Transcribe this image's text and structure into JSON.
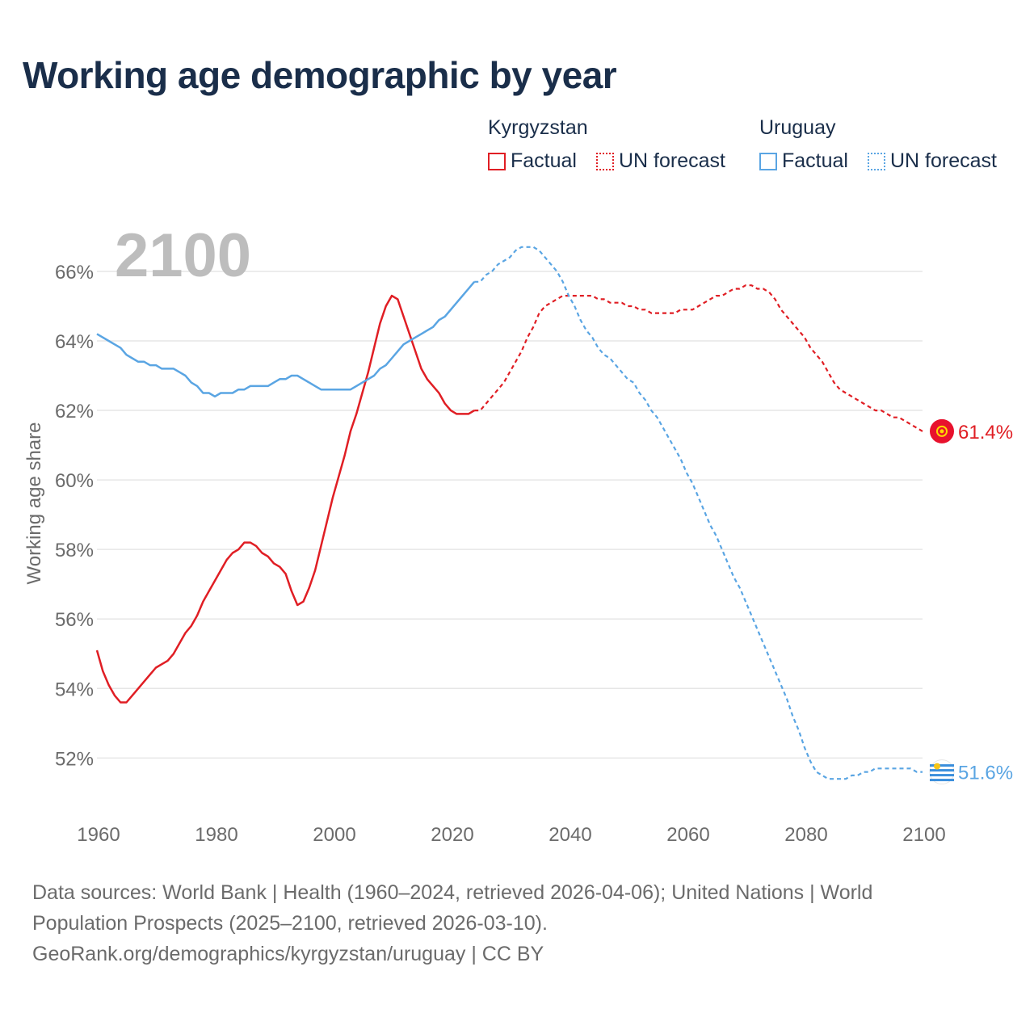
{
  "title": "Working age demographic by year",
  "year_label": "2100",
  "legend": {
    "groups": [
      {
        "country": "Kyrgyzstan",
        "color": "#e01e24",
        "factual": "Factual",
        "forecast": "UN forecast"
      },
      {
        "country": "Uruguay",
        "color": "#5aa5e3",
        "factual": "Factual",
        "forecast": "UN forecast"
      }
    ]
  },
  "footer": {
    "line1": "Data sources: World Bank | Health (1960–2024, retrieved 2026-04-06); United Nations | World",
    "line2": "Population Prospects (2025–2100, retrieved 2026-03-10).",
    "line3": "GeoRank.org/demographics/kyrgyzstan/uruguay | CC BY"
  },
  "chart_data": {
    "type": "line",
    "title": "Working age demographic by year",
    "xlabel": "",
    "ylabel": "Working age share",
    "xlim": [
      1960,
      2100
    ],
    "ylim": [
      50.8,
      67.3
    ],
    "x_ticks": [
      1960,
      1980,
      2000,
      2020,
      2040,
      2060,
      2080,
      2100
    ],
    "x_tick_labels": [
      "1960",
      "1980",
      "2000",
      "2020",
      "2040",
      "2060",
      "2080",
      "2100"
    ],
    "y_ticks": [
      52,
      54,
      56,
      58,
      60,
      62,
      64,
      66
    ],
    "y_tick_labels": [
      "52%",
      "54%",
      "56%",
      "58%",
      "60%",
      "62%",
      "64%",
      "66%"
    ],
    "grid": true,
    "series": [
      {
        "name": "Kyrgyzstan",
        "color": "#e01e24",
        "end_label": "61.4%",
        "factual_range": [
          1960,
          2024
        ],
        "points": [
          [
            1960,
            55.1
          ],
          [
            1961,
            54.5
          ],
          [
            1962,
            54.1
          ],
          [
            1963,
            53.8
          ],
          [
            1964,
            53.6
          ],
          [
            1965,
            53.6
          ],
          [
            1966,
            53.8
          ],
          [
            1967,
            54.0
          ],
          [
            1968,
            54.2
          ],
          [
            1969,
            54.4
          ],
          [
            1970,
            54.6
          ],
          [
            1971,
            54.7
          ],
          [
            1972,
            54.8
          ],
          [
            1973,
            55.0
          ],
          [
            1974,
            55.3
          ],
          [
            1975,
            55.6
          ],
          [
            1976,
            55.8
          ],
          [
            1977,
            56.1
          ],
          [
            1978,
            56.5
          ],
          [
            1979,
            56.8
          ],
          [
            1980,
            57.1
          ],
          [
            1981,
            57.4
          ],
          [
            1982,
            57.7
          ],
          [
            1983,
            57.9
          ],
          [
            1984,
            58.0
          ],
          [
            1985,
            58.2
          ],
          [
            1986,
            58.2
          ],
          [
            1987,
            58.1
          ],
          [
            1988,
            57.9
          ],
          [
            1989,
            57.8
          ],
          [
            1990,
            57.6
          ],
          [
            1991,
            57.5
          ],
          [
            1992,
            57.3
          ],
          [
            1993,
            56.8
          ],
          [
            1994,
            56.4
          ],
          [
            1995,
            56.5
          ],
          [
            1996,
            56.9
          ],
          [
            1997,
            57.4
          ],
          [
            1998,
            58.1
          ],
          [
            1999,
            58.8
          ],
          [
            2000,
            59.5
          ],
          [
            2001,
            60.1
          ],
          [
            2002,
            60.7
          ],
          [
            2003,
            61.4
          ],
          [
            2004,
            61.9
          ],
          [
            2005,
            62.5
          ],
          [
            2006,
            63.1
          ],
          [
            2007,
            63.8
          ],
          [
            2008,
            64.5
          ],
          [
            2009,
            65.0
          ],
          [
            2010,
            65.3
          ],
          [
            2011,
            65.2
          ],
          [
            2012,
            64.7
          ],
          [
            2013,
            64.2
          ],
          [
            2014,
            63.7
          ],
          [
            2015,
            63.2
          ],
          [
            2016,
            62.9
          ],
          [
            2017,
            62.7
          ],
          [
            2018,
            62.5
          ],
          [
            2019,
            62.2
          ],
          [
            2020,
            62.0
          ],
          [
            2021,
            61.9
          ],
          [
            2022,
            61.9
          ],
          [
            2023,
            61.9
          ],
          [
            2024,
            62.0
          ],
          [
            2025,
            62.0
          ],
          [
            2026,
            62.2
          ],
          [
            2027,
            62.4
          ],
          [
            2028,
            62.6
          ],
          [
            2029,
            62.8
          ],
          [
            2030,
            63.1
          ],
          [
            2031,
            63.4
          ],
          [
            2032,
            63.7
          ],
          [
            2033,
            64.1
          ],
          [
            2034,
            64.4
          ],
          [
            2035,
            64.8
          ],
          [
            2036,
            65.0
          ],
          [
            2037,
            65.1
          ],
          [
            2038,
            65.2
          ],
          [
            2039,
            65.3
          ],
          [
            2040,
            65.3
          ],
          [
            2041,
            65.3
          ],
          [
            2042,
            65.3
          ],
          [
            2043,
            65.3
          ],
          [
            2044,
            65.3
          ],
          [
            2045,
            65.2
          ],
          [
            2046,
            65.2
          ],
          [
            2047,
            65.1
          ],
          [
            2048,
            65.1
          ],
          [
            2049,
            65.1
          ],
          [
            2050,
            65.0
          ],
          [
            2051,
            65.0
          ],
          [
            2052,
            64.9
          ],
          [
            2053,
            64.9
          ],
          [
            2054,
            64.8
          ],
          [
            2055,
            64.8
          ],
          [
            2056,
            64.8
          ],
          [
            2057,
            64.8
          ],
          [
            2058,
            64.8
          ],
          [
            2059,
            64.9
          ],
          [
            2060,
            64.9
          ],
          [
            2061,
            64.9
          ],
          [
            2062,
            65.0
          ],
          [
            2063,
            65.1
          ],
          [
            2064,
            65.2
          ],
          [
            2065,
            65.3
          ],
          [
            2066,
            65.3
          ],
          [
            2067,
            65.4
          ],
          [
            2068,
            65.5
          ],
          [
            2069,
            65.5
          ],
          [
            2070,
            65.6
          ],
          [
            2071,
            65.6
          ],
          [
            2072,
            65.5
          ],
          [
            2073,
            65.5
          ],
          [
            2074,
            65.4
          ],
          [
            2075,
            65.2
          ],
          [
            2076,
            64.9
          ],
          [
            2077,
            64.7
          ],
          [
            2078,
            64.5
          ],
          [
            2079,
            64.3
          ],
          [
            2080,
            64.1
          ],
          [
            2081,
            63.8
          ],
          [
            2082,
            63.6
          ],
          [
            2083,
            63.4
          ],
          [
            2084,
            63.1
          ],
          [
            2085,
            62.8
          ],
          [
            2086,
            62.6
          ],
          [
            2087,
            62.5
          ],
          [
            2088,
            62.4
          ],
          [
            2089,
            62.3
          ],
          [
            2090,
            62.2
          ],
          [
            2091,
            62.1
          ],
          [
            2092,
            62.0
          ],
          [
            2093,
            62.0
          ],
          [
            2094,
            61.9
          ],
          [
            2095,
            61.8
          ],
          [
            2096,
            61.8
          ],
          [
            2097,
            61.7
          ],
          [
            2098,
            61.6
          ],
          [
            2099,
            61.5
          ],
          [
            2100,
            61.4
          ]
        ]
      },
      {
        "name": "Uruguay",
        "color": "#5aa5e3",
        "end_label": "51.6%",
        "factual_range": [
          1960,
          2024
        ],
        "points": [
          [
            1960,
            64.2
          ],
          [
            1961,
            64.1
          ],
          [
            1962,
            64.0
          ],
          [
            1963,
            63.9
          ],
          [
            1964,
            63.8
          ],
          [
            1965,
            63.6
          ],
          [
            1966,
            63.5
          ],
          [
            1967,
            63.4
          ],
          [
            1968,
            63.4
          ],
          [
            1969,
            63.3
          ],
          [
            1970,
            63.3
          ],
          [
            1971,
            63.2
          ],
          [
            1972,
            63.2
          ],
          [
            1973,
            63.2
          ],
          [
            1974,
            63.1
          ],
          [
            1975,
            63.0
          ],
          [
            1976,
            62.8
          ],
          [
            1977,
            62.7
          ],
          [
            1978,
            62.5
          ],
          [
            1979,
            62.5
          ],
          [
            1980,
            62.4
          ],
          [
            1981,
            62.5
          ],
          [
            1982,
            62.5
          ],
          [
            1983,
            62.5
          ],
          [
            1984,
            62.6
          ],
          [
            1985,
            62.6
          ],
          [
            1986,
            62.7
          ],
          [
            1987,
            62.7
          ],
          [
            1988,
            62.7
          ],
          [
            1989,
            62.7
          ],
          [
            1990,
            62.8
          ],
          [
            1991,
            62.9
          ],
          [
            1992,
            62.9
          ],
          [
            1993,
            63.0
          ],
          [
            1994,
            63.0
          ],
          [
            1995,
            62.9
          ],
          [
            1996,
            62.8
          ],
          [
            1997,
            62.7
          ],
          [
            1998,
            62.6
          ],
          [
            1999,
            62.6
          ],
          [
            2000,
            62.6
          ],
          [
            2001,
            62.6
          ],
          [
            2002,
            62.6
          ],
          [
            2003,
            62.6
          ],
          [
            2004,
            62.7
          ],
          [
            2005,
            62.8
          ],
          [
            2006,
            62.9
          ],
          [
            2007,
            63.0
          ],
          [
            2008,
            63.2
          ],
          [
            2009,
            63.3
          ],
          [
            2010,
            63.5
          ],
          [
            2011,
            63.7
          ],
          [
            2012,
            63.9
          ],
          [
            2013,
            64.0
          ],
          [
            2014,
            64.1
          ],
          [
            2015,
            64.2
          ],
          [
            2016,
            64.3
          ],
          [
            2017,
            64.4
          ],
          [
            2018,
            64.6
          ],
          [
            2019,
            64.7
          ],
          [
            2020,
            64.9
          ],
          [
            2021,
            65.1
          ],
          [
            2022,
            65.3
          ],
          [
            2023,
            65.5
          ],
          [
            2024,
            65.7
          ],
          [
            2025,
            65.7
          ],
          [
            2026,
            65.9
          ],
          [
            2027,
            66.0
          ],
          [
            2028,
            66.2
          ],
          [
            2029,
            66.3
          ],
          [
            2030,
            66.4
          ],
          [
            2031,
            66.6
          ],
          [
            2032,
            66.7
          ],
          [
            2033,
            66.7
          ],
          [
            2034,
            66.7
          ],
          [
            2035,
            66.6
          ],
          [
            2036,
            66.4
          ],
          [
            2037,
            66.2
          ],
          [
            2038,
            66.0
          ],
          [
            2039,
            65.7
          ],
          [
            2040,
            65.3
          ],
          [
            2041,
            65.0
          ],
          [
            2042,
            64.6
          ],
          [
            2043,
            64.3
          ],
          [
            2044,
            64.1
          ],
          [
            2045,
            63.8
          ],
          [
            2046,
            63.6
          ],
          [
            2047,
            63.5
          ],
          [
            2048,
            63.3
          ],
          [
            2049,
            63.1
          ],
          [
            2050,
            62.9
          ],
          [
            2051,
            62.8
          ],
          [
            2052,
            62.5
          ],
          [
            2053,
            62.3
          ],
          [
            2054,
            62.0
          ],
          [
            2055,
            61.8
          ],
          [
            2056,
            61.5
          ],
          [
            2057,
            61.2
          ],
          [
            2058,
            60.9
          ],
          [
            2059,
            60.6
          ],
          [
            2060,
            60.2
          ],
          [
            2061,
            59.9
          ],
          [
            2062,
            59.5
          ],
          [
            2063,
            59.1
          ],
          [
            2064,
            58.7
          ],
          [
            2065,
            58.4
          ],
          [
            2066,
            58.0
          ],
          [
            2067,
            57.6
          ],
          [
            2068,
            57.2
          ],
          [
            2069,
            56.9
          ],
          [
            2070,
            56.5
          ],
          [
            2071,
            56.1
          ],
          [
            2072,
            55.7
          ],
          [
            2073,
            55.3
          ],
          [
            2074,
            54.9
          ],
          [
            2075,
            54.5
          ],
          [
            2076,
            54.1
          ],
          [
            2077,
            53.7
          ],
          [
            2078,
            53.2
          ],
          [
            2079,
            52.8
          ],
          [
            2080,
            52.3
          ],
          [
            2081,
            51.9
          ],
          [
            2082,
            51.6
          ],
          [
            2083,
            51.5
          ],
          [
            2084,
            51.4
          ],
          [
            2085,
            51.4
          ],
          [
            2086,
            51.4
          ],
          [
            2087,
            51.4
          ],
          [
            2088,
            51.5
          ],
          [
            2089,
            51.5
          ],
          [
            2090,
            51.6
          ],
          [
            2091,
            51.6
          ],
          [
            2092,
            51.7
          ],
          [
            2093,
            51.7
          ],
          [
            2094,
            51.7
          ],
          [
            2095,
            51.7
          ],
          [
            2096,
            51.7
          ],
          [
            2097,
            51.7
          ],
          [
            2098,
            51.7
          ],
          [
            2099,
            51.6
          ],
          [
            2100,
            51.6
          ]
        ]
      }
    ]
  }
}
